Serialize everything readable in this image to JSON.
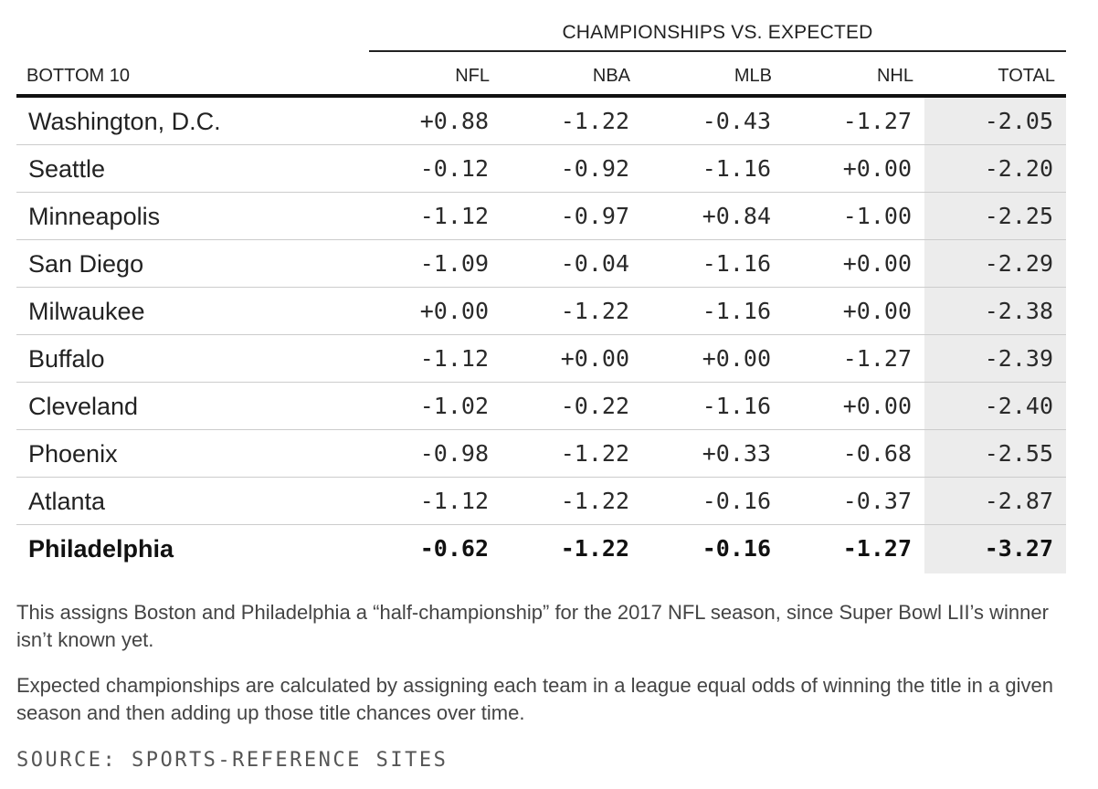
{
  "chart_data": {
    "type": "table",
    "group_header": "CHAMPIONSHIPS VS. EXPECTED",
    "columns": [
      "BOTTOM 10",
      "NFL",
      "NBA",
      "MLB",
      "NHL",
      "TOTAL"
    ],
    "rows": [
      {
        "city": "Washington, D.C.",
        "values": [
          "+0.88",
          "-1.22",
          "-0.43",
          "-1.27",
          "-2.05"
        ]
      },
      {
        "city": "Seattle",
        "values": [
          "-0.12",
          "-0.92",
          "-1.16",
          "+0.00",
          "-2.20"
        ]
      },
      {
        "city": "Minneapolis",
        "values": [
          "-1.12",
          "-0.97",
          "+0.84",
          "-1.00",
          "-2.25"
        ]
      },
      {
        "city": "San Diego",
        "values": [
          "-1.09",
          "-0.04",
          "-1.16",
          "+0.00",
          "-2.29"
        ]
      },
      {
        "city": "Milwaukee",
        "values": [
          "+0.00",
          "-1.22",
          "-1.16",
          "+0.00",
          "-2.38"
        ]
      },
      {
        "city": "Buffalo",
        "values": [
          "-1.12",
          "+0.00",
          "+0.00",
          "-1.27",
          "-2.39"
        ]
      },
      {
        "city": "Cleveland",
        "values": [
          "-1.02",
          "-0.22",
          "-1.16",
          "+0.00",
          "-2.40"
        ]
      },
      {
        "city": "Phoenix",
        "values": [
          "-0.98",
          "-1.22",
          "+0.33",
          "-0.68",
          "-2.55"
        ]
      },
      {
        "city": "Atlanta",
        "values": [
          "-1.12",
          "-1.22",
          "-0.16",
          "-0.37",
          "-2.87"
        ]
      },
      {
        "city": "Philadelphia",
        "values": [
          "-0.62",
          "-1.22",
          "-0.16",
          "-1.27",
          "-3.27"
        ],
        "bold": true
      }
    ],
    "highlight_column": "TOTAL",
    "highlight_color": "#ececec"
  },
  "notes": [
    "This assigns Boston and Philadelphia a “half-championship” for the 2017 NFL season, since Super Bowl LII’s winner isn’t known yet.",
    "Expected championships are calculated by assigning each team in a league equal odds of winning the title in a given season and then adding up those title chances over time."
  ],
  "source": "SOURCE: SPORTS-REFERENCE SITES"
}
